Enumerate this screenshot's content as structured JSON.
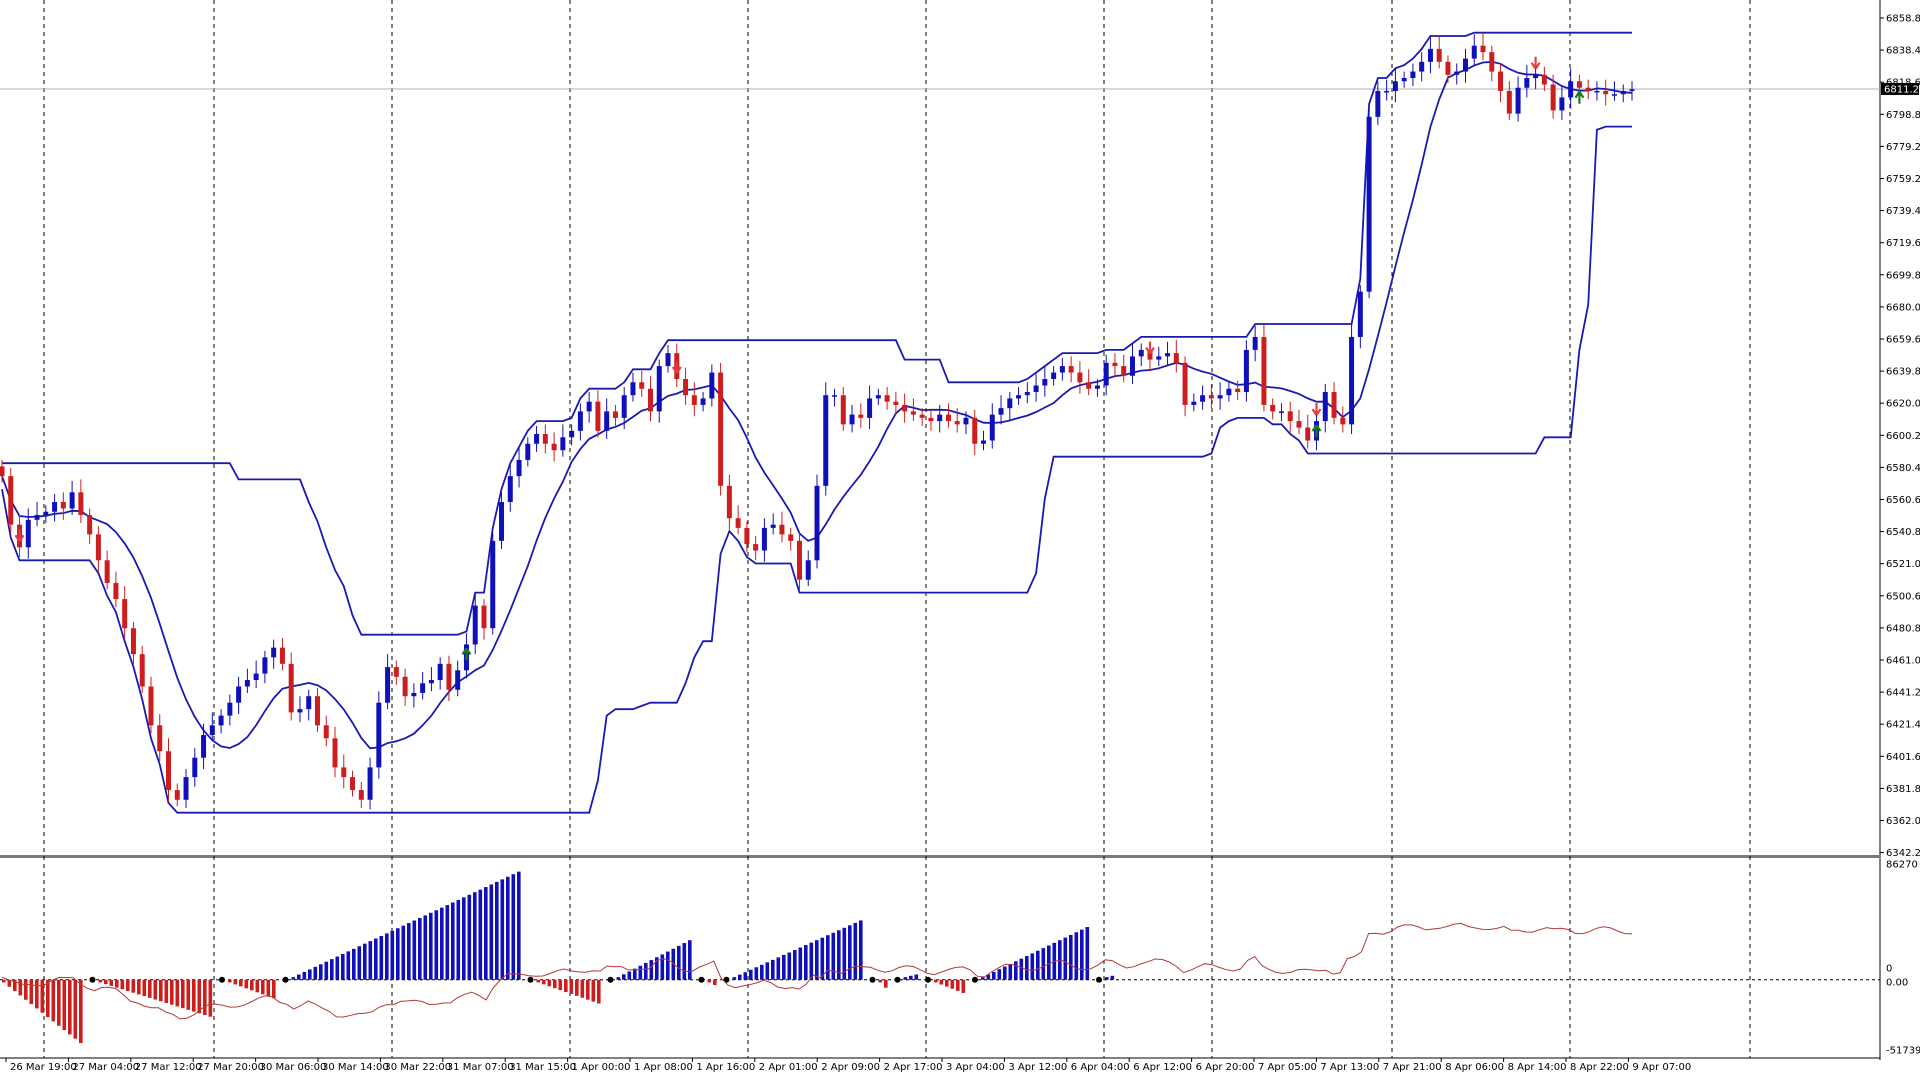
{
  "chart_data": {
    "type": "candlestick",
    "colors": {
      "bull": "#1010b8",
      "bear": "#cc1e1e",
      "indicator_line": "#1a1ab0",
      "signal_line": "#b03a3a",
      "grid": "#000000",
      "up_arrow": "#1a7a1a",
      "down_arrow": "#e04040",
      "small_up_arrow": "#2040d0",
      "current_price_box": "#000000"
    },
    "price_axis": {
      "ylim": [
        6342.2,
        6858.8
      ],
      "ticks": [
        "6858.80",
        "6838.40",
        "6818.60",
        "6798.80",
        "6779.20",
        "6759.20",
        "6739.40",
        "6719.60",
        "6699.80",
        "6680.00",
        "6659.60",
        "6639.80",
        "6620.00",
        "6600.20",
        "6580.40",
        "6560.60",
        "6540.80",
        "6521.00",
        "6500.60",
        "6480.80",
        "6461.00",
        "6441.20",
        "6421.40",
        "6401.60",
        "6381.80",
        "6362.00",
        "6342.20"
      ],
      "current_price": "6811.25"
    },
    "osc_axis": {
      "ylim": [
        -51739,
        86270
      ],
      "ticks": [
        "86270",
        "0",
        "0.00",
        "-51739"
      ]
    },
    "time_axis": {
      "labels": [
        "26 Mar 19:00",
        "27 Mar 04:00",
        "27 Mar 12:00",
        "27 Mar 20:00",
        "30 Mar 06:00",
        "30 Mar 14:00",
        "30 Mar 22:00",
        "31 Mar 07:00",
        "31 Mar 15:00",
        "1 Apr 00:00",
        "1 Apr 08:00",
        "1 Apr 16:00",
        "2 Apr 01:00",
        "2 Apr 09:00",
        "2 Apr 17:00",
        "3 Apr 04:00",
        "3 Apr 12:00",
        "6 Apr 04:00",
        "6 Apr 12:00",
        "6 Apr 20:00",
        "7 Apr 05:00",
        "7 Apr 13:00",
        "7 Apr 21:00",
        "8 Apr 06:00",
        "8 Apr 14:00",
        "8 Apr 22:00",
        "9 Apr 07:00"
      ]
    },
    "candles_close_path": [
      6572,
      6542,
      6528,
      6545,
      6548,
      6550,
      6556,
      6552,
      6562,
      6548,
      6536,
      6520,
      6506,
      6496,
      6478,
      6462,
      6442,
      6418,
      6402,
      6378,
      6372,
      6386,
      6398,
      6412,
      6418,
      6424,
      6432,
      6442,
      6446,
      6450,
      6460,
      6466,
      6456,
      6426,
      6428,
      6436,
      6418,
      6410,
      6392,
      6386,
      6378,
      6372,
      6392,
      6432,
      6454,
      6448,
      6436,
      6438,
      6444,
      6446,
      6456,
      6440,
      6452,
      6468,
      6492,
      6478,
      6532,
      6556,
      6572,
      6582,
      6592,
      6598,
      6592,
      6588,
      6596,
      6600,
      6612,
      6618,
      6600,
      6612,
      6608,
      6622,
      6630,
      6626,
      6612,
      6640,
      6648,
      6632,
      6622,
      6616,
      6620,
      6636,
      6566,
      6546,
      6540,
      6530,
      6526,
      6540,
      6542,
      6536,
      6532,
      6508,
      6520,
      6566,
      6622,
      6622,
      6604,
      6610,
      6608,
      6620,
      6622,
      6618,
      6616,
      6612,
      6610,
      6608,
      6606,
      6610,
      6606,
      6604,
      6608,
      6592,
      6594,
      6610,
      6614,
      6620,
      6622,
      6624,
      6628,
      6632,
      6636,
      6640,
      6636,
      6630,
      6626,
      6628,
      6642,
      6640,
      6634,
      6646,
      6650,
      6644,
      6646,
      6648,
      6642,
      6616,
      6618,
      6622,
      6620,
      6622,
      6626,
      6624,
      6650,
      6658,
      6616,
      6612,
      6612,
      6606,
      6602,
      6594,
      6606,
      6624,
      6608,
      6604,
      6658,
      6686,
      6794,
      6810,
      6810,
      6816,
      6818,
      6822,
      6828,
      6836,
      6828,
      6820,
      6822,
      6830,
      6838,
      6834,
      6822,
      6810,
      6796,
      6812,
      6818,
      6820,
      6814,
      6798,
      6806,
      6816,
      6812,
      6810,
      6810,
      6808,
      6808,
      6810,
      6811
    ],
    "oscillator_segments": [
      {
        "color": "bear",
        "from": -2000,
        "to": -48000,
        "bars": 15
      },
      {
        "color": "bear",
        "from": -2000,
        "to": -28000,
        "bars": 21
      },
      {
        "color": "bear",
        "from": -2000,
        "to": -14000,
        "bars": 9
      },
      {
        "color": "bull",
        "from": 2000,
        "to": 82000,
        "bars": 42
      },
      {
        "color": "bear",
        "from": -2000,
        "to": -18000,
        "bars": 12
      },
      {
        "color": "bull",
        "from": 2000,
        "to": 30000,
        "bars": 14
      },
      {
        "color": "bear",
        "from": -2000,
        "to": -4000,
        "bars": 2
      },
      {
        "color": "bull",
        "from": 2000,
        "to": 45000,
        "bars": 24
      },
      {
        "color": "bear",
        "from": -2000,
        "to": -6000,
        "bars": 2
      },
      {
        "color": "bull",
        "from": 2000,
        "to": 4000,
        "bars": 3
      },
      {
        "color": "bear",
        "from": -2000,
        "to": -10000,
        "bars": 6
      },
      {
        "color": "bull",
        "from": 2000,
        "to": 40000,
        "bars": 20
      },
      {
        "color": "bull",
        "from": 2000,
        "to": 3000,
        "bars": 2
      }
    ]
  }
}
